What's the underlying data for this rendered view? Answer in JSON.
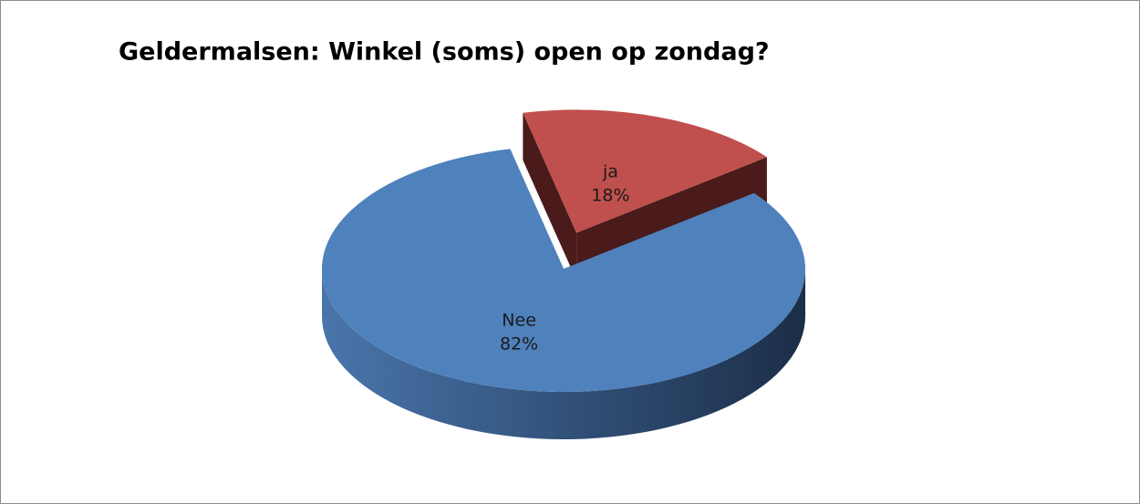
{
  "chart_data": {
    "type": "pie",
    "title": "Geldermalsen: Winkel (soms) open op zondag?",
    "categories": [
      "Nee",
      "ja"
    ],
    "values": [
      82,
      18
    ],
    "value_labels": [
      "82%",
      "18%"
    ],
    "colors": [
      "#4f81bd",
      "#c0504d"
    ]
  }
}
